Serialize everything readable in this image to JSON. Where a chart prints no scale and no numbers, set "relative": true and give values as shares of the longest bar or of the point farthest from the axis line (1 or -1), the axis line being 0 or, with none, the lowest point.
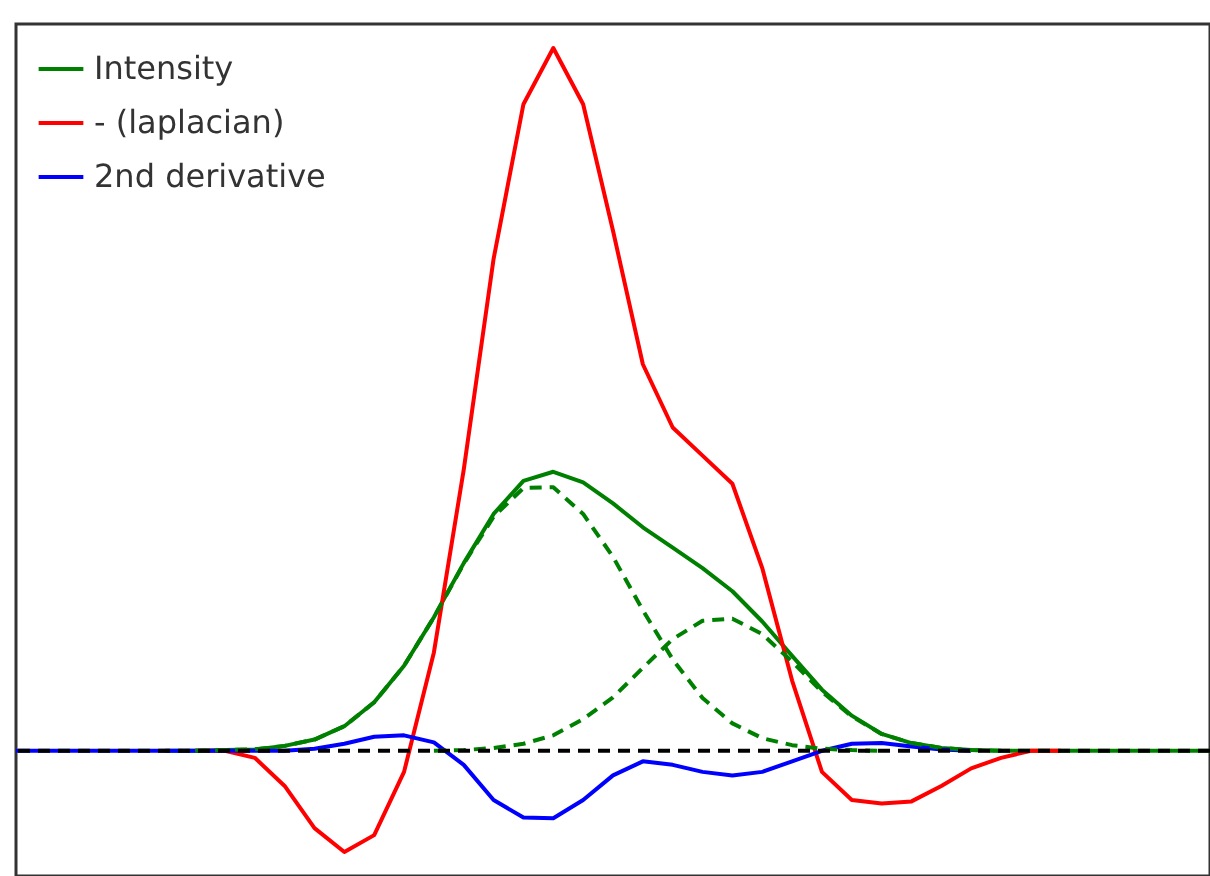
{
  "chart_data": {
    "type": "line",
    "relative": true,
    "legend": "top left",
    "categories": [
      null,
      null,
      null,
      null,
      null,
      null,
      null,
      null,
      null,
      null,
      null,
      null,
      null,
      null,
      null,
      null,
      null,
      null,
      null,
      null,
      null,
      null,
      null,
      null,
      null,
      null,
      null,
      null,
      null,
      null,
      null,
      null,
      null,
      null,
      null,
      null,
      null,
      null,
      null,
      null,
      null
    ],
    "series": [
      {
        "name": "Intensity",
        "color": "#008000",
        "line_style": "solid",
        "values": [
          null,
          null,
          null,
          null,
          null,
          0,
          0,
          0.001,
          0.002,
          0.007,
          0.016,
          0.035,
          0.069,
          0.121,
          0.19,
          0.267,
          0.337,
          0.384,
          0.397,
          0.382,
          0.352,
          0.318,
          0.289,
          0.26,
          0.227,
          0.184,
          0.135,
          0.087,
          0.05,
          0.024,
          0.011,
          0.004,
          0.001,
          0,
          0,
          0,
          0,
          0,
          0,
          0,
          0
        ]
      },
      {
        "name": "- (laplacian)",
        "color": "#ff0000",
        "line_style": "solid",
        "values": [
          null,
          null,
          null,
          null,
          null,
          null,
          0,
          0,
          -0.01,
          -0.05,
          -0.11,
          -0.144,
          -0.12,
          -0.03,
          0.14,
          0.4,
          0.7,
          0.92,
          1.0,
          0.92,
          0.74,
          0.55,
          0.46,
          0.42,
          0.38,
          0.26,
          0.1,
          -0.03,
          -0.07,
          -0.075,
          -0.072,
          -0.05,
          -0.025,
          -0.01,
          0,
          0,
          null,
          null,
          null,
          null,
          null
        ]
      },
      {
        "name": "2nd derivative",
        "color": "#0000ff",
        "line_style": "solid",
        "values": [
          0,
          0,
          0,
          0,
          0,
          0,
          0,
          0,
          0,
          0,
          0.003,
          0.01,
          0.02,
          0.022,
          0.012,
          -0.02,
          -0.07,
          -0.095,
          -0.096,
          -0.07,
          -0.035,
          -0.015,
          -0.02,
          -0.03,
          -0.035,
          -0.03,
          -0.015,
          0,
          0.01,
          0.011,
          0.006,
          0.002,
          0,
          null,
          null,
          null,
          null,
          null,
          null,
          null,
          null
        ]
      },
      {
        "color": "#008000",
        "line_style": "dashed",
        "values": [
          null,
          null,
          null,
          null,
          null,
          null,
          0,
          0.001,
          0.002,
          0.007,
          0.016,
          0.035,
          0.069,
          0.121,
          0.19,
          0.266,
          0.333,
          0.374,
          0.375,
          0.337,
          0.276,
          0.2,
          0.13,
          0.075,
          0.039,
          0.018,
          0.008,
          0.003,
          0.001,
          0,
          null,
          null,
          null,
          null,
          null,
          null,
          null,
          null,
          null,
          null,
          null
        ]
      },
      {
        "color": "#008000",
        "line_style": "dashed",
        "values": [
          null,
          null,
          null,
          null,
          null,
          null,
          null,
          null,
          null,
          null,
          null,
          null,
          null,
          null,
          0,
          0.001,
          0.004,
          0.01,
          0.022,
          0.045,
          0.076,
          0.118,
          0.159,
          0.185,
          0.188,
          0.166,
          0.127,
          0.084,
          0.049,
          0.024,
          0.011,
          0.004,
          0.001,
          0,
          null,
          null,
          null,
          null,
          null,
          null,
          null
        ]
      }
    ],
    "ref_lines": [
      {
        "axis": "y",
        "value": 0,
        "color": "#000000",
        "line_style": "dashed"
      }
    ]
  }
}
